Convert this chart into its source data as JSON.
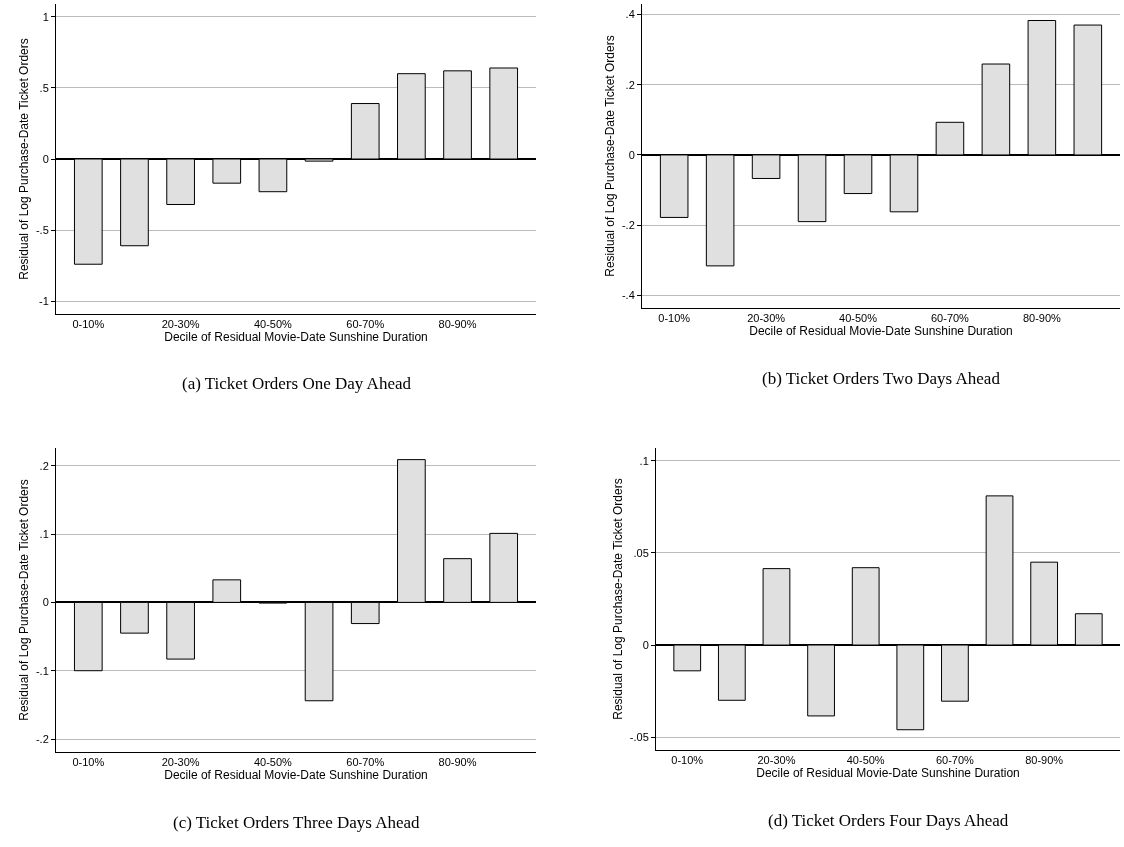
{
  "chart_data": [
    {
      "type": "bar",
      "title": "(a) Ticket Orders One Day Ahead",
      "xlabel": "Decile of Residual Movie-Date Sunshine Duration",
      "ylabel": "Residual of Log Purchase-Date Ticket Orders",
      "categories": [
        "0-10%",
        null,
        "20-30%",
        null,
        "40-50%",
        null,
        "60-70%",
        null,
        "80-90%",
        null
      ],
      "values": [
        -0.74,
        -0.61,
        -0.32,
        -0.17,
        -0.23,
        -0.015,
        0.39,
        0.6,
        0.62,
        0.64
      ],
      "color": "#e0e0e0",
      "ylim": [
        -1.09,
        1.09
      ],
      "yticks": [
        {
          "value": -1,
          "label": "-1"
        },
        {
          "value": -0.5,
          "label": "-.5"
        },
        0,
        {
          "value": 0.5,
          "label": ".5"
        },
        1
      ],
      "grid": "y"
    },
    {
      "type": "bar",
      "title": "(b) Ticket Orders Two Days Ahead",
      "xlabel": "Decile of Residual Movie-Date Sunshine Duration",
      "ylabel": "Residual of Log Purchase-Date Ticket Orders",
      "categories": [
        "0-10%",
        null,
        "20-30%",
        null,
        "40-50%",
        null,
        "60-70%",
        null,
        "80-90%",
        null
      ],
      "values": [
        -0.178,
        -0.316,
        -0.067,
        -0.19,
        -0.11,
        -0.162,
        0.093,
        0.259,
        0.383,
        0.37
      ],
      "color": "#e0e0e0",
      "ylim": [
        -0.436,
        0.43
      ],
      "yticks": [
        {
          "value": -0.4,
          "label": "-.4"
        },
        {
          "value": -0.2,
          "label": "-.2"
        },
        0,
        {
          "value": 0.2,
          "label": ".2"
        },
        {
          "value": 0.4,
          "label": ".4"
        }
      ],
      "grid": "y"
    },
    {
      "type": "bar",
      "title": "(c) Ticket Orders Three Days Ahead",
      "xlabel": "Decile of Residual Movie-Date Sunshine Duration",
      "ylabel": "Residual of Log Purchase-Date Ticket Orders",
      "categories": [
        "0-10%",
        null,
        "20-30%",
        null,
        "40-50%",
        null,
        "60-70%",
        null,
        "80-90%",
        null
      ],
      "values": [
        -0.1,
        -0.045,
        -0.083,
        0.033,
        -0.001,
        -0.144,
        -0.031,
        0.209,
        0.064,
        0.101
      ],
      "color": "#e0e0e0",
      "ylim": [
        -0.219,
        0.226
      ],
      "yticks": [
        {
          "value": -0.2,
          "label": "-.2"
        },
        {
          "value": -0.1,
          "label": "-.1"
        },
        0,
        {
          "value": 0.1,
          "label": ".1"
        },
        {
          "value": 0.2,
          "label": ".2"
        }
      ],
      "grid": "y"
    },
    {
      "type": "bar",
      "title": "(d) Ticket Orders Four Days Ahead",
      "xlabel": "Decile of Residual Movie-Date Sunshine Duration",
      "ylabel": "Residual of Log Purchase-Date Ticket Orders",
      "categories": [
        "0-10%",
        null,
        "20-30%",
        null,
        "40-50%",
        null,
        "60-70%",
        null,
        "80-90%",
        null
      ],
      "values": [
        -0.014,
        -0.03,
        0.0415,
        -0.0385,
        0.042,
        -0.046,
        -0.0305,
        0.081,
        0.045,
        0.017
      ],
      "color": "#e0e0e0",
      "ylim": [
        -0.057,
        0.107
      ],
      "yticks": [
        {
          "value": -0.05,
          "label": "-.05"
        },
        0,
        {
          "value": 0.05,
          "label": ".05"
        },
        {
          "value": 0.1,
          "label": ".1"
        }
      ],
      "grid": "y"
    }
  ]
}
